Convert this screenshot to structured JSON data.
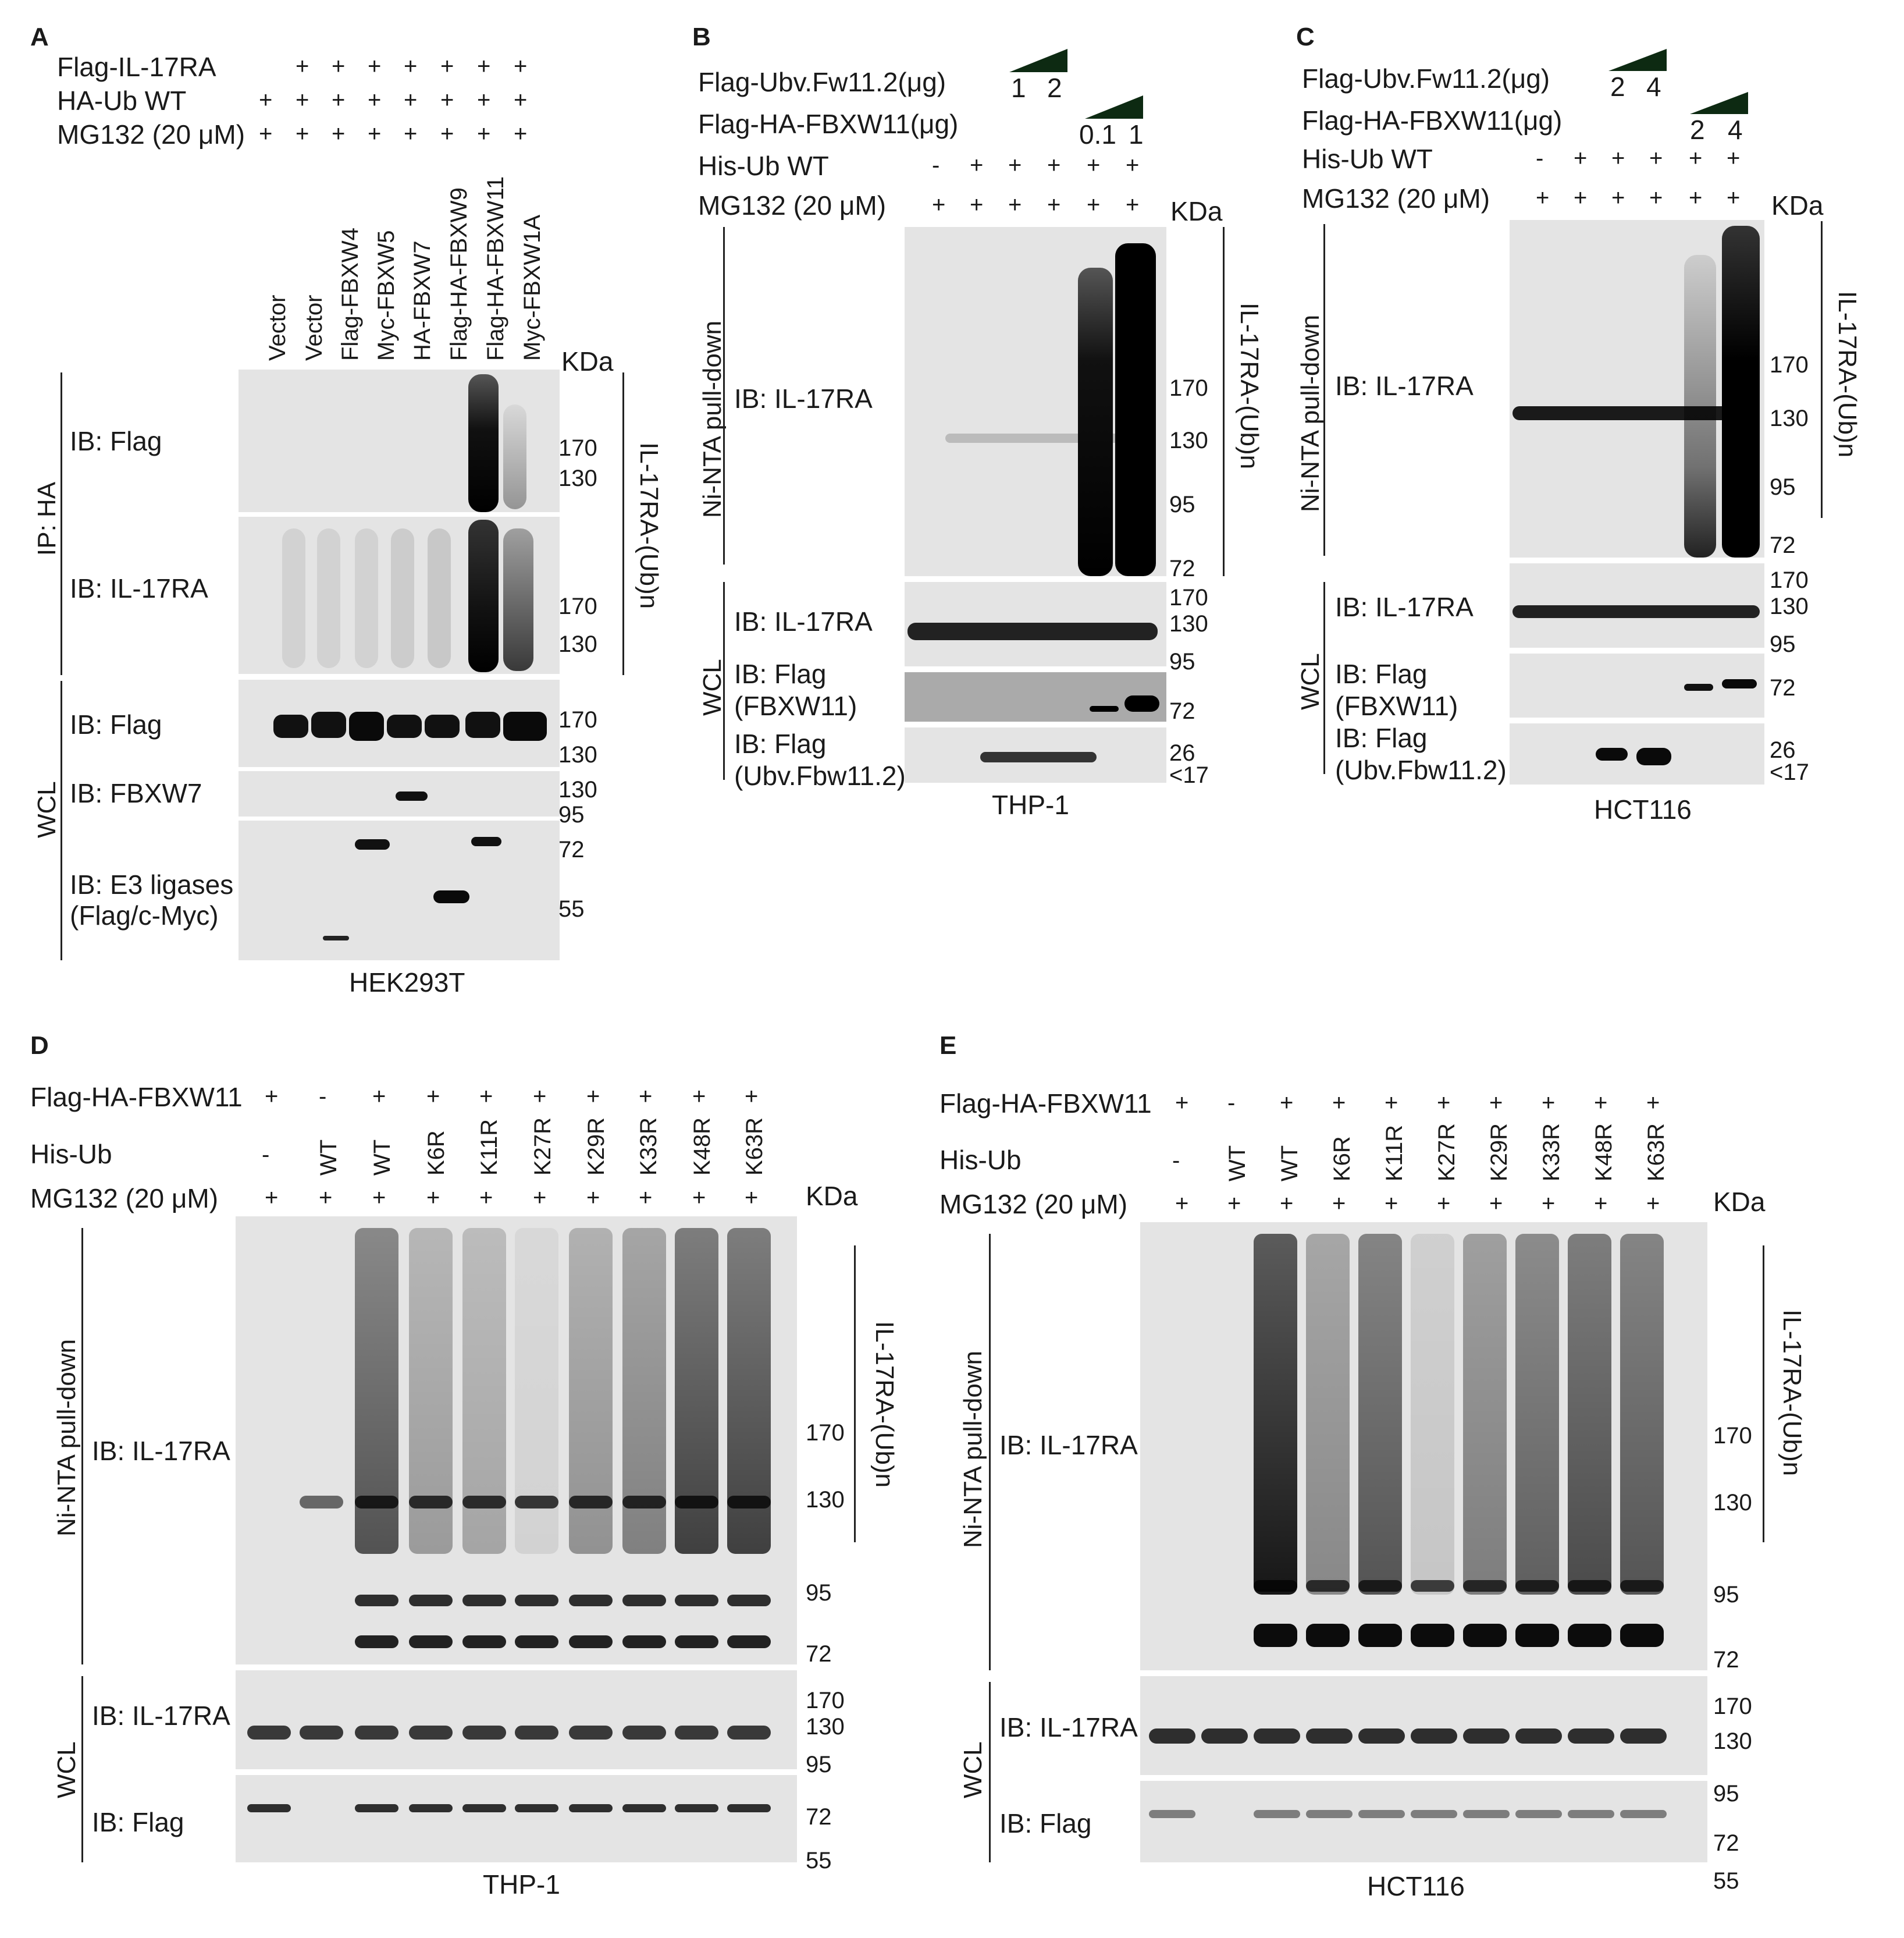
{
  "panels": {
    "A": {
      "letter": "A",
      "rows": [
        "Flag-IL-17RA",
        "HA-Ub WT",
        "MG132 (20 μM)"
      ],
      "plus": "+",
      "lanes": [
        "Vector",
        "Vector",
        "Flag-FBXW4",
        "Myc-FBXW5",
        "HA-FBXW7",
        "Flag-HA-FBXW9",
        "Flag-HA-FBXW11",
        "Myc-FBXW1A"
      ],
      "kda": "KDa",
      "ip_label": "IP: HA",
      "wcl_label": "WCL",
      "blots": [
        "IB: Flag",
        "IB: IL-17RA",
        "IB: Flag",
        "IB: FBXW7",
        "IB: E3 ligases",
        "(Flag/c-Myc)"
      ],
      "markers": [
        "170",
        "130",
        "170",
        "130",
        "170",
        "130",
        "130",
        "95",
        "72",
        "55"
      ],
      "ub_label": "IL-17RA-(Ub)n",
      "cell": "HEK293T"
    },
    "B": {
      "letter": "B",
      "rows": [
        "Flag-Ubv.Fw11.2(μg)",
        "Flag-HA-FBXW11(μg)",
        "His-Ub WT",
        "MG132 (20 μM)"
      ],
      "doses1": [
        "1",
        "2"
      ],
      "doses2": [
        "0.1",
        "1"
      ],
      "hisub": [
        "-",
        "+",
        "+",
        "+",
        "+",
        "+"
      ],
      "mg": [
        "+",
        "+",
        "+",
        "+",
        "+",
        "+"
      ],
      "kda": "KDa",
      "pulldown_label": "Ni-NTA pull-down",
      "wcl_label": "WCL",
      "blots": [
        "IB: IL-17RA",
        "IB: IL-17RA",
        "IB: Flag",
        "(FBXW11)",
        "IB: Flag",
        "(Ubv.Fbw11.2)"
      ],
      "markers": [
        "170",
        "130",
        "95",
        "72",
        "170",
        "130",
        "95",
        "72",
        "26",
        "<17"
      ],
      "ub_label": "IL-17RA-(Ub)n",
      "cell": "THP-1"
    },
    "C": {
      "letter": "C",
      "rows": [
        "Flag-Ubv.Fw11.2(μg)",
        "Flag-HA-FBXW11(μg)",
        "His-Ub WT",
        "MG132 (20 μM)"
      ],
      "doses1": [
        "2",
        "4"
      ],
      "doses2": [
        "2",
        "4"
      ],
      "hisub": [
        "-",
        "+",
        "+",
        "+",
        "+",
        "+"
      ],
      "mg": [
        "+",
        "+",
        "+",
        "+",
        "+",
        "+"
      ],
      "kda": "KDa",
      "pulldown_label": "Ni-NTA pull-down",
      "wcl_label": "WCL",
      "blots": [
        "IB: IL-17RA",
        "IB: IL-17RA",
        "IB: Flag",
        "(FBXW11)",
        "IB: Flag",
        "(Ubv.Fbw11.2)"
      ],
      "markers": [
        "170",
        "130",
        "95",
        "72",
        "170",
        "130",
        "95",
        "72",
        "26",
        "<17"
      ],
      "ub_label": "IL-17RA-(Ub)n",
      "cell": "HCT116"
    },
    "D": {
      "letter": "D",
      "rows": [
        "Flag-HA-FBXW11",
        "His-Ub",
        "MG132 (20 μM)"
      ],
      "fbxw11": [
        "+",
        "-",
        "+",
        "+",
        "+",
        "+",
        "+",
        "+",
        "+",
        "+"
      ],
      "hisub": [
        "-",
        "WT",
        "WT",
        "K6R",
        "K11R",
        "K27R",
        "K29R",
        "K33R",
        "K48R",
        "K63R"
      ],
      "mg": [
        "+",
        "+",
        "+",
        "+",
        "+",
        "+",
        "+",
        "+",
        "+",
        "+"
      ],
      "kda": "KDa",
      "pulldown_label": "Ni-NTA pull-down",
      "wcl_label": "WCL",
      "blots": [
        "IB: IL-17RA",
        "IB: IL-17RA",
        "IB: Flag"
      ],
      "markers": [
        "170",
        "130",
        "95",
        "72",
        "170",
        "130",
        "95",
        "72",
        "55"
      ],
      "ub_label": "IL-17RA-(Ub)n",
      "cell": "THP-1"
    },
    "E": {
      "letter": "E",
      "rows": [
        "Flag-HA-FBXW11",
        "His-Ub",
        "MG132 (20 μM)"
      ],
      "fbxw11": [
        "+",
        "-",
        "+",
        "+",
        "+",
        "+",
        "+",
        "+",
        "+",
        "+"
      ],
      "hisub": [
        "-",
        "WT",
        "WT",
        "K6R",
        "K11R",
        "K27R",
        "K29R",
        "K33R",
        "K48R",
        "K63R"
      ],
      "mg": [
        "+",
        "+",
        "+",
        "+",
        "+",
        "+",
        "+",
        "+",
        "+",
        "+"
      ],
      "kda": "KDa",
      "pulldown_label": "Ni-NTA pull-down",
      "wcl_label": "WCL",
      "blots": [
        "IB: IL-17RA",
        "IB: IL-17RA",
        "IB: Flag"
      ],
      "markers": [
        "170",
        "130",
        "95",
        "72",
        "170",
        "130",
        "95",
        "72",
        "55"
      ],
      "ub_label": "IL-17RA-(Ub)n",
      "cell": "HCT116"
    }
  }
}
